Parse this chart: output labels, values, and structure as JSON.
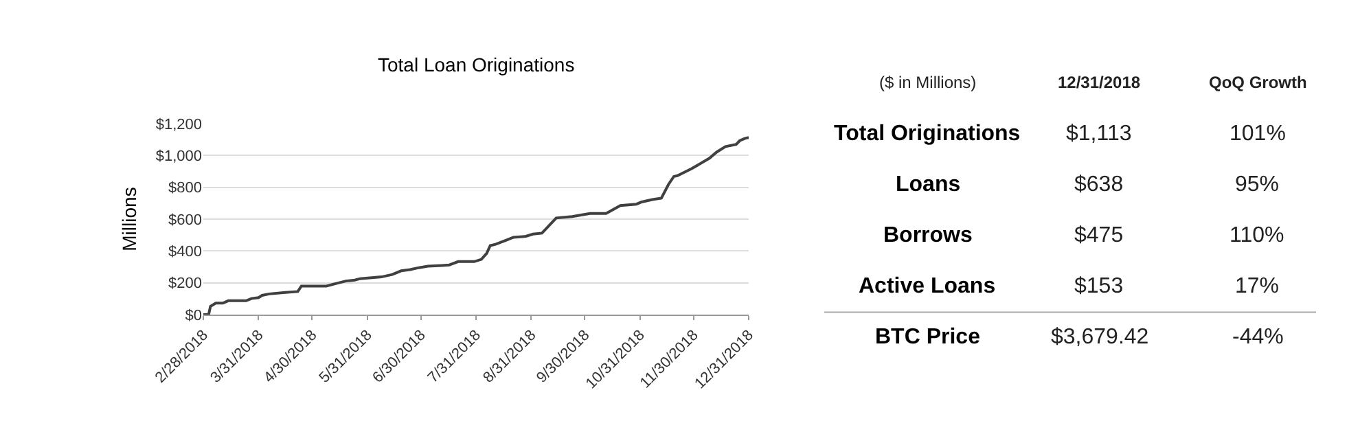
{
  "chart_data": [
    {
      "type": "line",
      "title": "Total Loan Originations",
      "ylabel": "Millions",
      "color": "#404040",
      "grid": "y",
      "marker": "none",
      "line_style": "solid",
      "x": [
        "2018-02-28",
        "2018-03-03",
        "2018-03-04",
        "2018-03-07",
        "2018-03-11",
        "2018-03-14",
        "2018-03-24",
        "2018-03-27",
        "2018-03-31",
        "2018-04-02",
        "2018-04-06",
        "2018-04-15",
        "2018-04-22",
        "2018-04-24",
        "2018-05-08",
        "2018-05-14",
        "2018-05-19",
        "2018-05-24",
        "2018-05-27",
        "2018-06-08",
        "2018-06-14",
        "2018-06-19",
        "2018-06-24",
        "2018-06-29",
        "2018-07-04",
        "2018-07-12",
        "2018-07-16",
        "2018-07-21",
        "2018-07-30",
        "2018-08-03",
        "2018-08-06",
        "2018-08-08",
        "2018-08-11",
        "2018-08-17",
        "2018-08-21",
        "2018-08-28",
        "2018-09-01",
        "2018-09-06",
        "2018-09-14",
        "2018-09-23",
        "2018-10-03",
        "2018-10-12",
        "2018-10-20",
        "2018-10-29",
        "2018-11-01",
        "2018-11-07",
        "2018-11-12",
        "2018-11-16",
        "2018-11-19",
        "2018-11-21",
        "2018-11-29",
        "2018-12-09",
        "2018-12-13",
        "2018-12-18",
        "2018-12-24",
        "2018-12-26",
        "2018-12-29",
        "2018-12-31"
      ],
      "values": [
        0,
        0,
        52,
        72,
        72,
        87,
        87,
        101,
        107,
        121,
        130,
        139,
        145,
        179,
        179,
        197,
        211,
        217,
        226,
        237,
        252,
        275,
        283,
        295,
        304,
        309,
        312,
        333,
        333,
        347,
        385,
        434,
        442,
        468,
        486,
        492,
        506,
        512,
        607,
        616,
        636,
        636,
        685,
        694,
        708,
        723,
        732,
        818,
        868,
        873,
        917,
        983,
        1021,
        1056,
        1070,
        1093,
        1108,
        1113
      ],
      "xlim": [
        "2018-02-28",
        "2018-12-31"
      ],
      "xticks": [
        {
          "value": "2018-02-28",
          "label": "2/28/2018"
        },
        {
          "value": "2018-03-31",
          "label": "3/31/2018"
        },
        {
          "value": "2018-04-30",
          "label": "4/30/2018"
        },
        {
          "value": "2018-05-31",
          "label": "5/31/2018"
        },
        {
          "value": "2018-06-30",
          "label": "6/30/2018"
        },
        {
          "value": "2018-07-31",
          "label": "7/31/2018"
        },
        {
          "value": "2018-08-31",
          "label": "8/31/2018"
        },
        {
          "value": "2018-09-30",
          "label": "9/30/2018"
        },
        {
          "value": "2018-10-31",
          "label": "10/31/2018"
        },
        {
          "value": "2018-11-30",
          "label": "11/30/2018"
        },
        {
          "value": "2018-12-31",
          "label": "12/31/2018"
        }
      ],
      "ylim": [
        0,
        1200
      ],
      "yticks": [
        {
          "value": 0,
          "label": "$0"
        },
        {
          "value": 200,
          "label": "$200"
        },
        {
          "value": 400,
          "label": "$400"
        },
        {
          "value": 600,
          "label": "$600"
        },
        {
          "value": 800,
          "label": "$800"
        },
        {
          "value": 1000,
          "label": "$1,000"
        },
        {
          "value": 1200,
          "label": "$1,200"
        }
      ]
    },
    {
      "type": "other",
      "title": "($ in Millions)",
      "categories": [
        "12/31/2018",
        "QoQ Growth"
      ],
      "y_categories": [
        "Total Originations",
        "Loans",
        "Borrows",
        "Active Loans",
        "BTC Price"
      ],
      "cell_labels": [
        [
          "$1,113",
          "101%"
        ],
        [
          "$638",
          "95%"
        ],
        [
          "$475",
          "110%"
        ],
        [
          "$153",
          "17%"
        ],
        [
          "$3,679.42",
          "-44%"
        ]
      ]
    }
  ]
}
